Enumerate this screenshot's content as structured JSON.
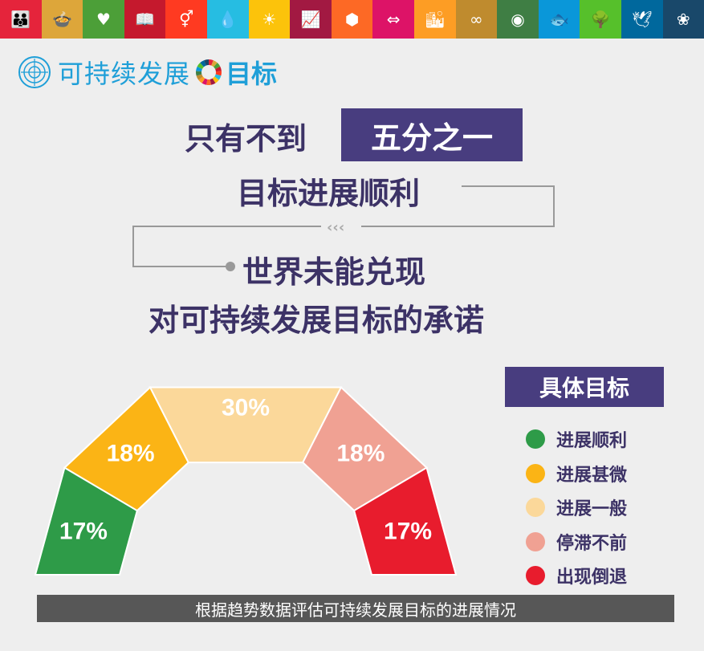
{
  "topbar": {
    "tiles": [
      {
        "color": "#e5243b",
        "icon": "family-icon",
        "glyph": "👪"
      },
      {
        "color": "#dda63a",
        "icon": "bowl-icon",
        "glyph": "🍲"
      },
      {
        "color": "#4c9f38",
        "icon": "heartbeat-icon",
        "glyph": "♥"
      },
      {
        "color": "#c5192d",
        "icon": "book-icon",
        "glyph": "📖"
      },
      {
        "color": "#ff3a21",
        "icon": "gender-icon",
        "glyph": "⚥"
      },
      {
        "color": "#26bde2",
        "icon": "water-drop-icon",
        "glyph": "💧"
      },
      {
        "color": "#fcc30b",
        "icon": "sun-icon",
        "glyph": "☀"
      },
      {
        "color": "#a21942",
        "icon": "growth-chart-icon",
        "glyph": "📈"
      },
      {
        "color": "#fd6925",
        "icon": "cubes-icon",
        "glyph": "⬢"
      },
      {
        "color": "#dd1367",
        "icon": "equality-icon",
        "glyph": "⇔"
      },
      {
        "color": "#fd9d24",
        "icon": "city-icon",
        "glyph": "🏙"
      },
      {
        "color": "#bf8b2e",
        "icon": "infinity-icon",
        "glyph": "∞"
      },
      {
        "color": "#3f7e44",
        "icon": "eye-globe-icon",
        "glyph": "◉"
      },
      {
        "color": "#0a97d9",
        "icon": "fish-icon",
        "glyph": "🐟"
      },
      {
        "color": "#56c02b",
        "icon": "tree-icon",
        "glyph": "🌳"
      },
      {
        "color": "#00689d",
        "icon": "dove-icon",
        "glyph": "🕊"
      },
      {
        "color": "#19486a",
        "icon": "flower-icon",
        "glyph": "❀"
      }
    ]
  },
  "brand": {
    "title_left": "可持续发展",
    "title_right": "目标"
  },
  "headline": {
    "line1_prefix": "只有不到",
    "line1_highlight": "五分之一",
    "line2": "目标进展顺利",
    "line3": "世界未能兑现",
    "line4": "对可持续发展目标的承诺",
    "connector_color": "#999999"
  },
  "chart_data": {
    "type": "pie",
    "variant": "half-donut",
    "title": "",
    "categories": [
      "进展顺利",
      "进展甚微",
      "进展一般",
      "停滞不前",
      "出现倒退"
    ],
    "values": [
      17,
      18,
      30,
      18,
      17
    ],
    "labels": [
      "17%",
      "18%",
      "30%",
      "18%",
      "17%"
    ],
    "colors": [
      "#2e9b48",
      "#fbb415",
      "#fbd89a",
      "#f0a193",
      "#e81c2d"
    ],
    "label_colors": [
      "#ffffff",
      "#ffffff",
      "#ffffff",
      "#ffffff",
      "#ffffff"
    ],
    "legend_title": "具体目标",
    "legend_position": "right"
  },
  "footer": {
    "caption": "根据趋势数据评估可持续发展目标的进展情况"
  }
}
